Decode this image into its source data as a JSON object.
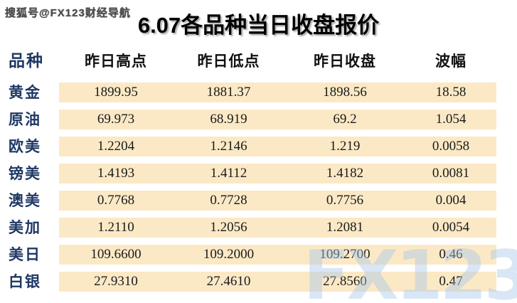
{
  "watermarks": {
    "top_left": "搜狐号@FX123财经导航",
    "bottom_right": "FX123"
  },
  "title": "6.07各品种当日收盘报价",
  "colors": {
    "header_navy": "#1f3864",
    "band_cream": "#fbe9c6",
    "value_text": "#1a1a1a",
    "watermark_blue": "#a8c7e9"
  },
  "table": {
    "label_header": "品种",
    "columns": [
      "昨日高点",
      "昨日低点",
      "昨日收盘",
      "波幅"
    ],
    "rows": [
      {
        "label": "黄金",
        "values": [
          "1899.95",
          "1881.37",
          "1898.56",
          "18.58"
        ]
      },
      {
        "label": "原油",
        "values": [
          "69.973",
          "68.919",
          "69.2",
          "1.054"
        ]
      },
      {
        "label": "欧美",
        "values": [
          "1.2204",
          "1.2146",
          "1.219",
          "0.0058"
        ]
      },
      {
        "label": "镑美",
        "values": [
          "1.4193",
          "1.4112",
          "1.4182",
          "0.0081"
        ]
      },
      {
        "label": "澳美",
        "values": [
          "0.7768",
          "0.7728",
          "0.7756",
          "0.004"
        ]
      },
      {
        "label": "美加",
        "values": [
          "1.2110",
          "1.2056",
          "1.2081",
          "0.0054"
        ]
      },
      {
        "label": "美日",
        "values": [
          "109.6600",
          "109.2000",
          "109.2700",
          "0.46"
        ]
      },
      {
        "label": "白银",
        "values": [
          "27.9310",
          "27.4610",
          "27.8560",
          "0.47"
        ]
      }
    ]
  },
  "chart_data": {
    "type": "table",
    "title": "6.07各品种当日收盘报价",
    "columns": [
      "品种",
      "昨日高点",
      "昨日低点",
      "昨日收盘",
      "波幅"
    ],
    "rows": [
      [
        "黄金",
        1899.95,
        1881.37,
        1898.56,
        18.58
      ],
      [
        "原油",
        69.973,
        68.919,
        69.2,
        1.054
      ],
      [
        "欧美",
        1.2204,
        1.2146,
        1.219,
        0.0058
      ],
      [
        "镑美",
        1.4193,
        1.4112,
        1.4182,
        0.0081
      ],
      [
        "澳美",
        0.7768,
        0.7728,
        0.7756,
        0.004
      ],
      [
        "美加",
        1.211,
        1.2056,
        1.2081,
        0.0054
      ],
      [
        "美日",
        109.66,
        109.2,
        109.27,
        0.46
      ],
      [
        "白银",
        27.931,
        27.461,
        27.856,
        0.47
      ]
    ]
  }
}
